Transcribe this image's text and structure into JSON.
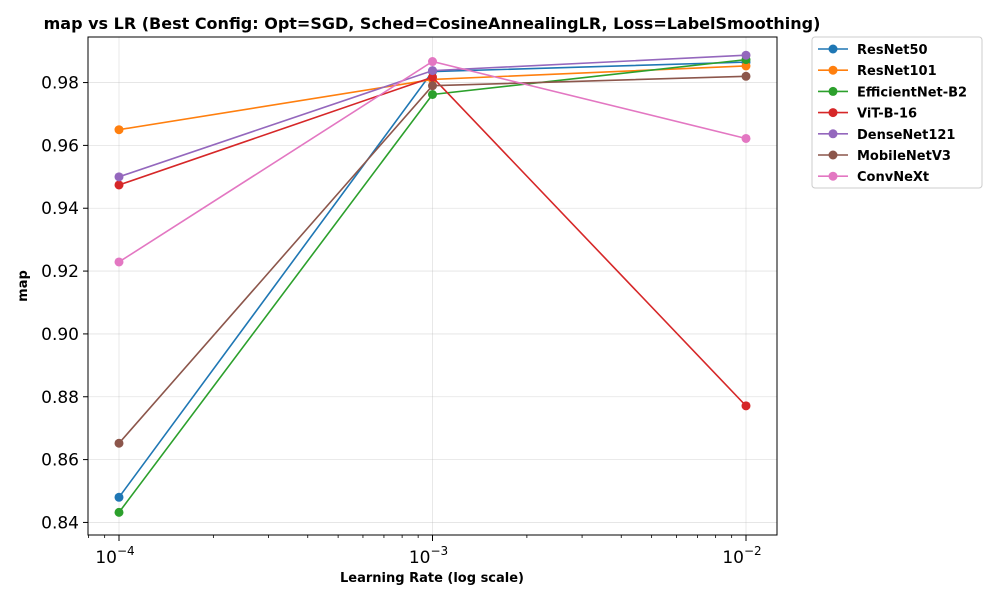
{
  "chart_data": {
    "type": "line",
    "title": "map vs LR (Best Config: Opt=SGD, Sched=CosineAnnealingLR, Loss=LabelSmoothing)",
    "xlabel": "Learning Rate (log scale)",
    "ylabel": "map",
    "x_scale": "log",
    "x": [
      0.0001,
      0.001,
      0.01
    ],
    "x_tick_labels": [
      {
        "base": "10",
        "exp": "−4"
      },
      {
        "base": "10",
        "exp": "−3"
      },
      {
        "base": "10",
        "exp": "−2"
      }
    ],
    "ylim": [
      0.836,
      0.9945
    ],
    "y_ticks": [
      0.84,
      0.86,
      0.88,
      0.9,
      0.92,
      0.94,
      0.96,
      0.98
    ],
    "y_tick_labels": [
      "0.84",
      "0.86",
      "0.88",
      "0.90",
      "0.92",
      "0.94",
      "0.96",
      "0.98"
    ],
    "grid": true,
    "legend_position": "outside-top-right",
    "series": [
      {
        "name": "ResNet50",
        "color": "#1f77b4",
        "values": [
          0.848,
          0.9835,
          0.9865
        ]
      },
      {
        "name": "ResNet101",
        "color": "#ff7f0e",
        "values": [
          0.965,
          0.981,
          0.9853
        ]
      },
      {
        "name": "EfficientNet-B2",
        "color": "#2ca02c",
        "values": [
          0.8432,
          0.9762,
          0.9873
        ]
      },
      {
        "name": "ViT-B-16",
        "color": "#d62728",
        "values": [
          0.9474,
          0.9817,
          0.8771
        ]
      },
      {
        "name": "DenseNet121",
        "color": "#9467bd",
        "values": [
          0.95,
          0.9838,
          0.9887
        ]
      },
      {
        "name": "MobileNetV3",
        "color": "#8c564b",
        "values": [
          0.8652,
          0.979,
          0.982
        ]
      },
      {
        "name": "ConvNeXt",
        "color": "#e377c2",
        "values": [
          0.9229,
          0.9867,
          0.9622
        ]
      }
    ]
  }
}
